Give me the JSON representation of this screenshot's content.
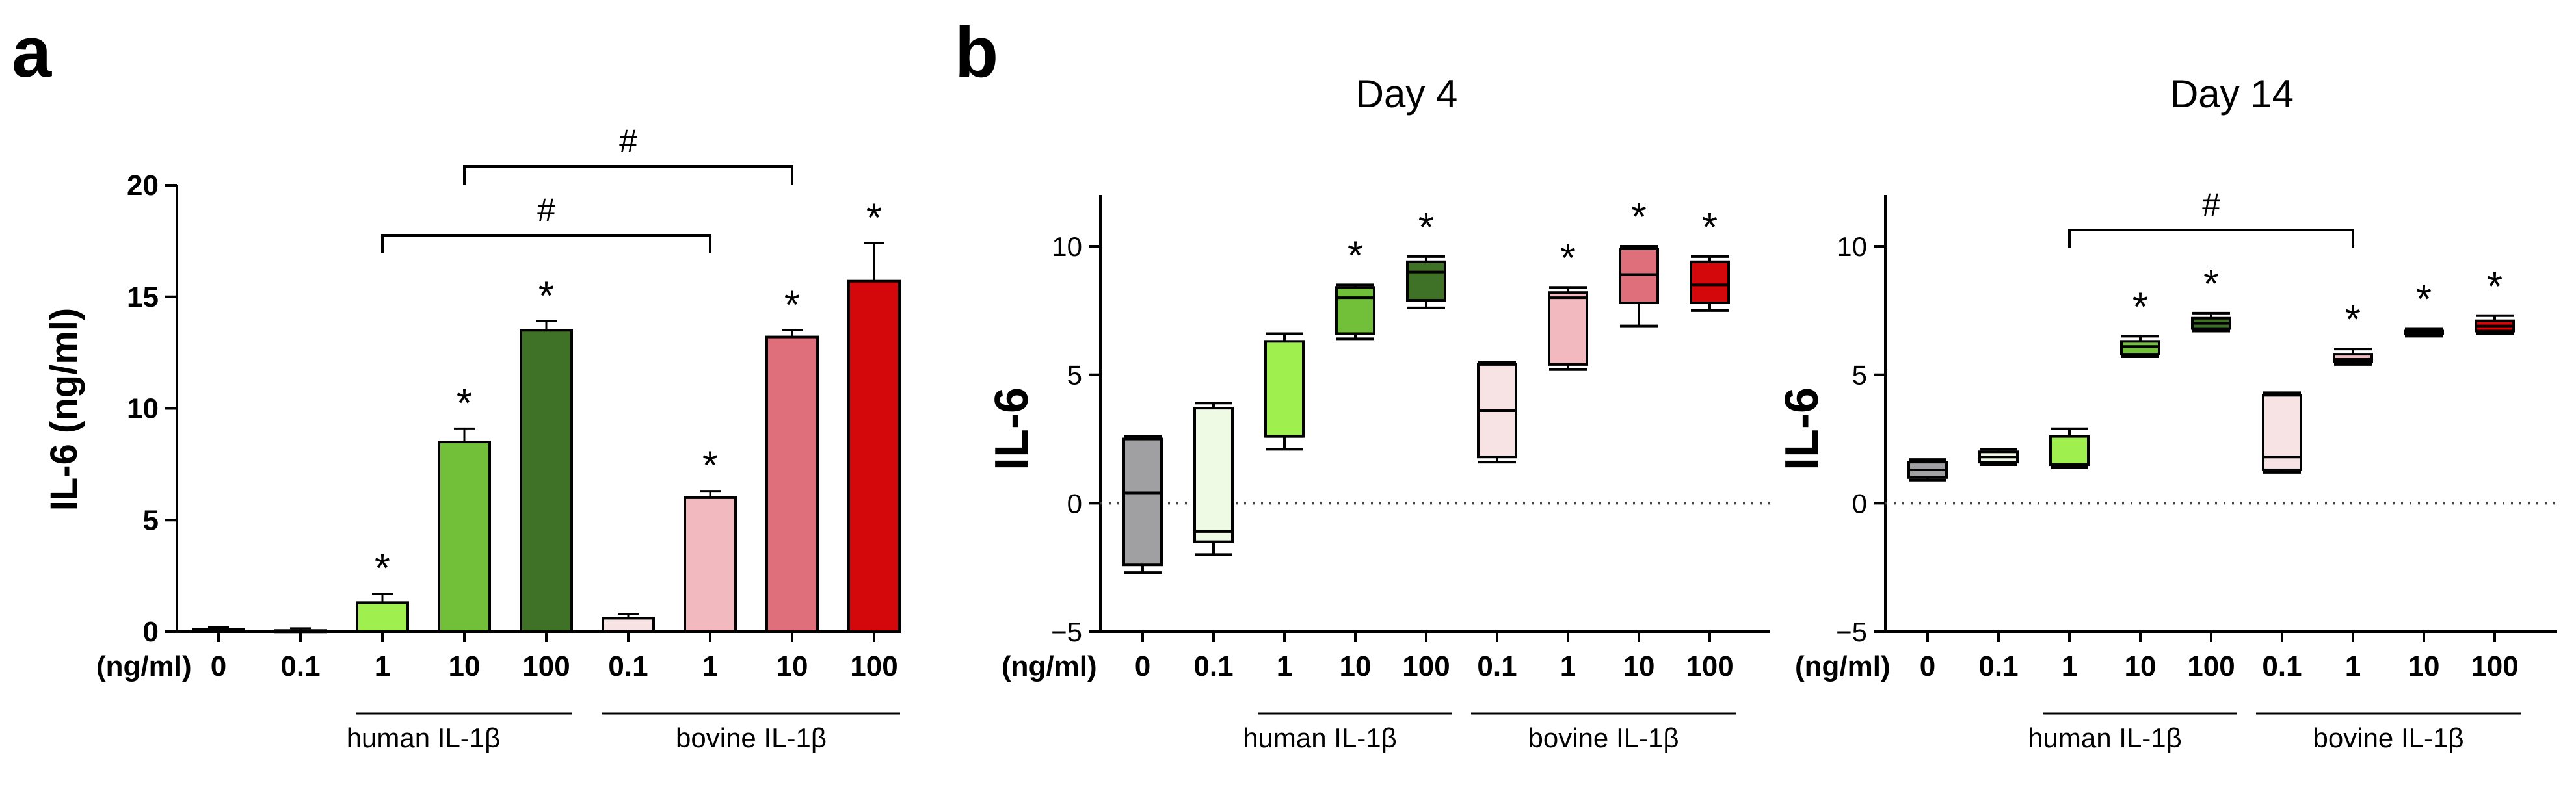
{
  "panels": {
    "a": "a",
    "b": "b"
  },
  "colors": {
    "ctrl": "#a0a0a2",
    "h01": "#eefae4",
    "h1": "#9ff04e",
    "h10": "#72bf3a",
    "h100": "#3f7226",
    "b01": "#f8e3e4",
    "b1": "#f2b9bf",
    "b10": "#df6f7b",
    "b100": "#d4080a"
  },
  "chart_data": [
    {
      "type": "bar",
      "panel": "a",
      "ylabel": "IL-6 (ng/ml)",
      "ylim": [
        0,
        20
      ],
      "yticks": [
        "0",
        "5",
        "10",
        "15",
        "20"
      ],
      "unit_label": "(ng/ml)",
      "categories": [
        "0",
        "0.1",
        "1",
        "10",
        "100",
        "0.1",
        "1",
        "10",
        "100"
      ],
      "values": [
        0.1,
        0.05,
        1.3,
        8.5,
        13.5,
        0.6,
        6.0,
        13.2,
        15.7
      ],
      "errors": [
        0.1,
        0.1,
        0.4,
        0.6,
        0.4,
        0.2,
        0.3,
        0.3,
        1.7
      ],
      "significance": [
        "",
        "",
        "*",
        "*",
        "*",
        "",
        "*",
        "*",
        "*"
      ],
      "brackets": [
        {
          "from": 2,
          "to": 6,
          "label": "#"
        },
        {
          "from": 3,
          "to": 7,
          "label": "#"
        }
      ],
      "groups": [
        "human IL-1β",
        "bovine IL-1β"
      ]
    },
    {
      "type": "box",
      "panel": "b",
      "title": "Day 4",
      "ylabel": "IL-6",
      "ylim": [
        -5,
        12
      ],
      "yticks": [
        "−5",
        "0",
        "5",
        "10"
      ],
      "unit_label": "(ng/ml)",
      "categories": [
        "0",
        "0.1",
        "1",
        "10",
        "100",
        "0.1",
        "1",
        "10",
        "100"
      ],
      "boxes": [
        {
          "min": -2.7,
          "q1": -2.4,
          "median": 0.4,
          "q3": 2.5,
          "max": 2.6
        },
        {
          "min": -2.0,
          "q1": -1.5,
          "median": -1.1,
          "q3": 3.7,
          "max": 3.9
        },
        {
          "min": 2.1,
          "q1": 2.6,
          "median": 2.6,
          "q3": 6.3,
          "max": 6.6
        },
        {
          "min": 6.4,
          "q1": 6.6,
          "median": 8.0,
          "q3": 8.4,
          "max": 8.5
        },
        {
          "min": 7.6,
          "q1": 7.9,
          "median": 9.0,
          "q3": 9.4,
          "max": 9.6
        },
        {
          "min": 1.6,
          "q1": 1.8,
          "median": 3.6,
          "q3": 5.4,
          "max": 5.5
        },
        {
          "min": 5.2,
          "q1": 5.4,
          "median": 8.0,
          "q3": 8.2,
          "max": 8.4
        },
        {
          "min": 6.9,
          "q1": 7.8,
          "median": 8.9,
          "q3": 9.9,
          "max": 10.0
        },
        {
          "min": 7.5,
          "q1": 7.8,
          "median": 8.5,
          "q3": 9.4,
          "max": 9.6
        }
      ],
      "significance": [
        "",
        "",
        "",
        "*",
        "*",
        "",
        "*",
        "*",
        "*"
      ],
      "brackets": [],
      "groups": [
        "human IL-1β",
        "bovine IL-1β"
      ]
    },
    {
      "type": "box",
      "panel": "b",
      "title": "Day 14",
      "ylabel": "IL-6",
      "ylim": [
        -5,
        12
      ],
      "yticks": [
        "−5",
        "0",
        "5",
        "10"
      ],
      "unit_label": "(ng/ml)",
      "categories": [
        "0",
        "0.1",
        "1",
        "10",
        "100",
        "0.1",
        "1",
        "10",
        "100"
      ],
      "boxes": [
        {
          "min": 0.9,
          "q1": 1.0,
          "median": 1.3,
          "q3": 1.6,
          "max": 1.7
        },
        {
          "min": 1.5,
          "q1": 1.6,
          "median": 1.8,
          "q3": 2.0,
          "max": 2.1
        },
        {
          "min": 1.4,
          "q1": 1.5,
          "median": 1.5,
          "q3": 2.6,
          "max": 2.9
        },
        {
          "min": 5.7,
          "q1": 5.8,
          "median": 6.1,
          "q3": 6.3,
          "max": 6.5
        },
        {
          "min": 6.7,
          "q1": 6.8,
          "median": 7.0,
          "q3": 7.2,
          "max": 7.4
        },
        {
          "min": 1.2,
          "q1": 1.3,
          "median": 1.8,
          "q3": 4.2,
          "max": 4.3
        },
        {
          "min": 5.4,
          "q1": 5.5,
          "median": 5.6,
          "q3": 5.8,
          "max": 6.0
        },
        {
          "min": 6.5,
          "q1": 6.6,
          "median": 6.6,
          "q3": 6.7,
          "max": 6.8
        },
        {
          "min": 6.6,
          "q1": 6.7,
          "median": 6.9,
          "q3": 7.1,
          "max": 7.3
        }
      ],
      "significance": [
        "",
        "",
        "",
        "*",
        "*",
        "",
        "*",
        "*",
        "*"
      ],
      "brackets": [
        {
          "from": 2,
          "to": 6,
          "label": "#"
        }
      ],
      "groups": [
        "human IL-1β",
        "bovine IL-1β"
      ]
    }
  ]
}
